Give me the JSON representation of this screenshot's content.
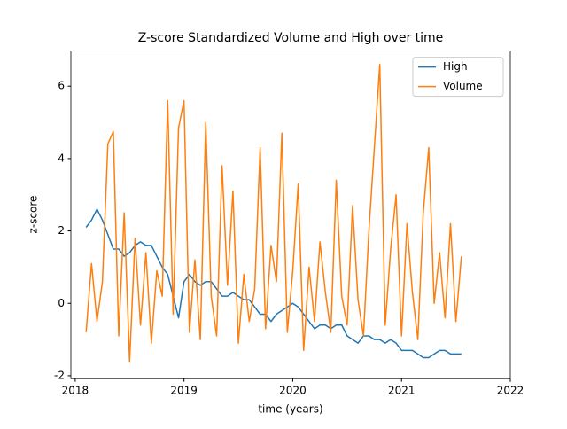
{
  "chart_data": {
    "type": "line",
    "title": "Z-score Standardized Volume and High over time",
    "xlabel": "time (years)",
    "ylabel": "z-score",
    "x": [
      2018.1,
      2018.15,
      2018.2,
      2018.25,
      2018.3,
      2018.35,
      2018.4,
      2018.45,
      2018.5,
      2018.55,
      2018.6,
      2018.65,
      2018.7,
      2018.75,
      2018.8,
      2018.85,
      2018.9,
      2018.95,
      2019.0,
      2019.05,
      2019.1,
      2019.15,
      2019.2,
      2019.25,
      2019.3,
      2019.35,
      2019.4,
      2019.45,
      2019.5,
      2019.55,
      2019.6,
      2019.65,
      2019.7,
      2019.75,
      2019.8,
      2019.85,
      2019.9,
      2019.95,
      2020.0,
      2020.05,
      2020.1,
      2020.15,
      2020.2,
      2020.25,
      2020.3,
      2020.35,
      2020.4,
      2020.45,
      2020.5,
      2020.55,
      2020.6,
      2020.65,
      2020.7,
      2020.75,
      2020.8,
      2020.85,
      2020.9,
      2020.95,
      2021.0,
      2021.05,
      2021.1,
      2021.15,
      2021.2,
      2021.25,
      2021.3,
      2021.35,
      2021.4,
      2021.45,
      2021.5,
      2021.55
    ],
    "series": [
      {
        "name": "High",
        "color": "#1f77b4",
        "values": [
          2.1,
          2.3,
          2.6,
          2.3,
          1.9,
          1.5,
          1.5,
          1.3,
          1.4,
          1.6,
          1.7,
          1.6,
          1.6,
          1.3,
          1.0,
          0.8,
          0.2,
          -0.4,
          0.6,
          0.8,
          0.6,
          0.5,
          0.6,
          0.6,
          0.4,
          0.2,
          0.2,
          0.3,
          0.2,
          0.1,
          0.1,
          -0.1,
          -0.3,
          -0.3,
          -0.5,
          -0.3,
          -0.2,
          -0.1,
          0.0,
          -0.1,
          -0.3,
          -0.5,
          -0.7,
          -0.6,
          -0.6,
          -0.7,
          -0.6,
          -0.6,
          -0.9,
          -1.0,
          -1.1,
          -0.9,
          -0.9,
          -1.0,
          -1.0,
          -1.1,
          -1.0,
          -1.1,
          -1.3,
          -1.3,
          -1.3,
          -1.4,
          -1.5,
          -1.5,
          -1.4,
          -1.3,
          -1.3,
          -1.4,
          -1.4,
          -1.4
        ]
      },
      {
        "name": "Volume",
        "color": "#ff7f0e",
        "values": [
          -0.8,
          1.1,
          -0.5,
          0.6,
          4.4,
          4.75,
          -0.9,
          2.5,
          -1.6,
          1.8,
          -0.6,
          1.4,
          -1.1,
          0.9,
          0.2,
          5.6,
          -0.3,
          4.85,
          5.6,
          -0.8,
          1.2,
          -1.0,
          5.0,
          0.2,
          -0.9,
          3.8,
          0.5,
          3.1,
          -1.1,
          0.8,
          -0.5,
          0.4,
          4.3,
          -0.7,
          1.6,
          0.6,
          4.7,
          -0.8,
          0.9,
          3.3,
          -1.3,
          1.0,
          -0.5,
          1.7,
          0.3,
          -0.8,
          3.4,
          0.2,
          -0.6,
          2.7,
          0.1,
          -0.9,
          2.0,
          4.3,
          6.6,
          -0.6,
          1.5,
          3.0,
          -0.9,
          2.2,
          0.3,
          -1.0,
          2.5,
          4.3,
          0.0,
          1.4,
          -0.4,
          2.2,
          -0.5,
          1.3
        ]
      }
    ],
    "xlim": [
      2017.96,
      2022.0
    ],
    "xticks": [
      2018,
      2019,
      2020,
      2021,
      2022
    ],
    "ylim": [
      -2.08,
      6.97
    ],
    "yticks": [
      -2,
      0,
      2,
      4,
      6
    ],
    "grid": false,
    "legend": "upper right"
  }
}
